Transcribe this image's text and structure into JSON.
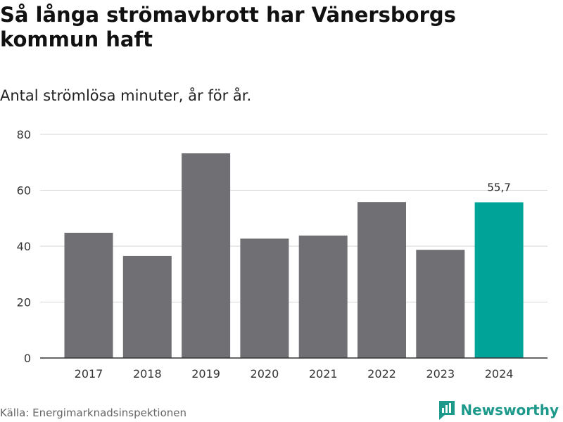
{
  "title": "Så långa strömavbrott har Vänersborgs kommun haft",
  "subtitle": "Antal strömlösa minuter, år för år.",
  "source": "Källa: Energimarknadsinspektionen",
  "brand": {
    "name": "Newsworthy",
    "icon": "newsworthy-logo-icon"
  },
  "colors": {
    "bar": "#706f74",
    "highlight": "#00a398",
    "grid": "#d6d6d6",
    "axis": "#333333"
  },
  "chart_data": {
    "type": "bar",
    "categories": [
      "2017",
      "2018",
      "2019",
      "2020",
      "2021",
      "2022",
      "2023",
      "2024"
    ],
    "values": [
      44.8,
      36.5,
      73.2,
      42.7,
      43.8,
      55.8,
      38.7,
      55.7
    ],
    "highlight_index": 7,
    "data_labels": [
      {
        "index": 7,
        "text": "55,7"
      }
    ],
    "ylim": [
      0,
      80
    ],
    "yticks": [
      0,
      20,
      40,
      60,
      80
    ],
    "xlabel": "",
    "ylabel": "",
    "grid": true
  }
}
